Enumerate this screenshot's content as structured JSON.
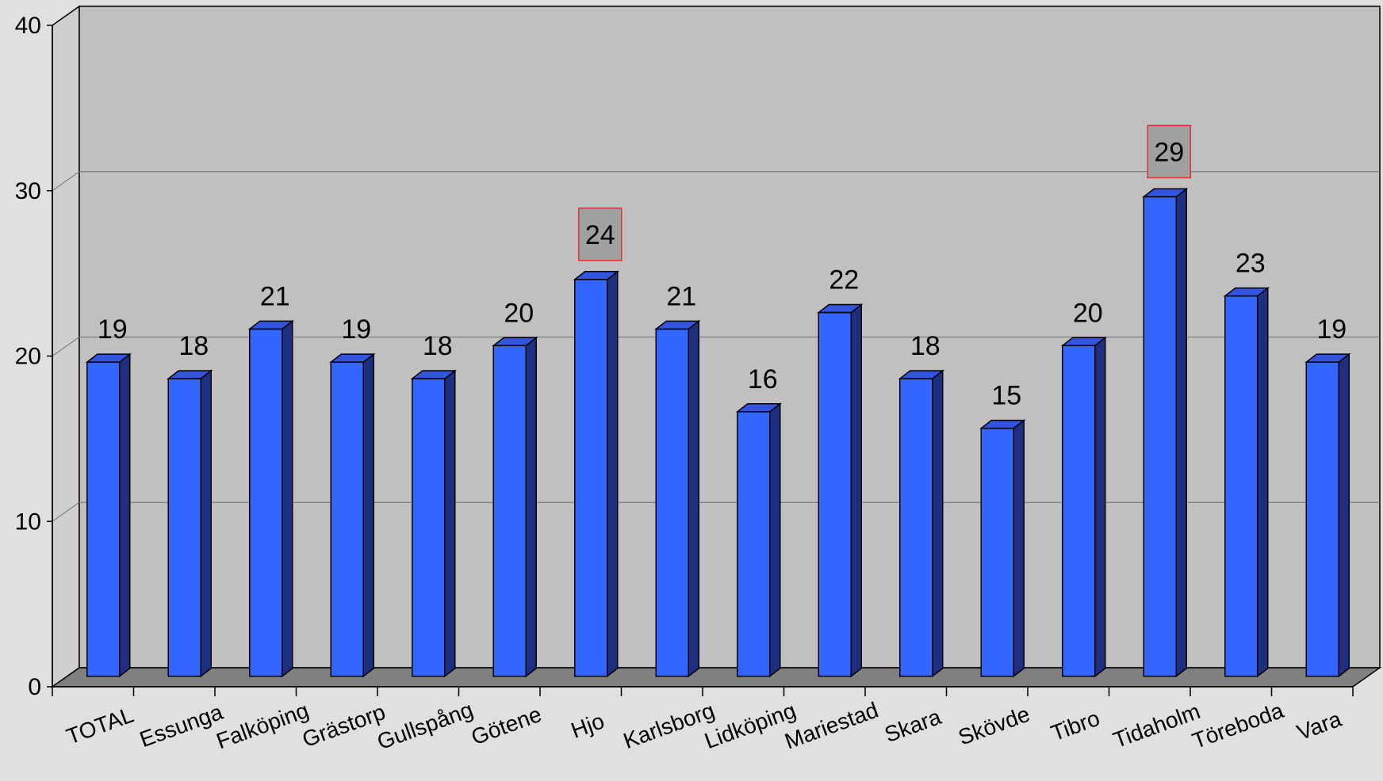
{
  "chart_data": {
    "type": "bar",
    "title": "",
    "xlabel": "",
    "ylabel": "",
    "ylim": [
      0,
      40
    ],
    "yticks": [
      "0",
      "10",
      "20",
      "30",
      "40"
    ],
    "grid": true,
    "categories": [
      "TOTAL",
      "Essunga",
      "Falköping",
      "Grästorp",
      "Gullspång",
      "Götene",
      "Hjo",
      "Karlsborg",
      "Lidköping",
      "Mariestad",
      "Skara",
      "Skövde",
      "Tibro",
      "Tidaholm",
      "Töreboda",
      "Vara"
    ],
    "values": [
      19,
      18,
      21,
      19,
      18,
      20,
      24,
      21,
      16,
      22,
      18,
      15,
      20,
      29,
      23,
      19
    ],
    "highlighted_labels": [
      "Hjo",
      "Tidaholm"
    ],
    "colors": {
      "bar_front": "#3366ff",
      "bar_side": "#1f2f80",
      "bar_top": "#3355dd",
      "back_wall": "#c0c0c0",
      "side_wall": "#cfcfcf",
      "floor": "#808080",
      "highlight_fill": "#a0a0a0",
      "highlight_border": "#e03030"
    }
  }
}
